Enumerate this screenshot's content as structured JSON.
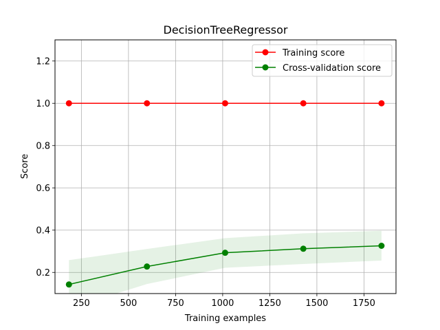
{
  "chart_data": {
    "type": "line",
    "title": "DecisionTreeRegressor",
    "xlabel": "Training examples",
    "ylabel": "Score",
    "xlim": [
      110,
      1920
    ],
    "ylim": [
      0.1,
      1.3
    ],
    "xticks": [
      250,
      500,
      750,
      1000,
      1250,
      1500,
      1750
    ],
    "yticks": [
      0.2,
      0.4,
      0.6,
      0.8,
      1.0,
      1.2
    ],
    "grid": true,
    "legend": "top-right",
    "series": [
      {
        "name": "Training score",
        "color": "#ff0000",
        "x": [
          184,
          598,
          1013,
          1428,
          1843
        ],
        "y": [
          1.0,
          1.0,
          1.0,
          1.0,
          1.0
        ],
        "band_lower": [
          1.0,
          1.0,
          1.0,
          1.0,
          1.0
        ],
        "band_upper": [
          1.0,
          1.0,
          1.0,
          1.0,
          1.0
        ]
      },
      {
        "name": "Cross-validation score",
        "color": "#008000",
        "band_color": "#008000",
        "x": [
          184,
          598,
          1013,
          1428,
          1843
        ],
        "y": [
          0.143,
          0.228,
          0.293,
          0.312,
          0.326
        ],
        "band_lower": [
          0.03,
          0.145,
          0.222,
          0.24,
          0.256
        ],
        "band_upper": [
          0.258,
          0.311,
          0.362,
          0.385,
          0.397
        ]
      }
    ]
  }
}
